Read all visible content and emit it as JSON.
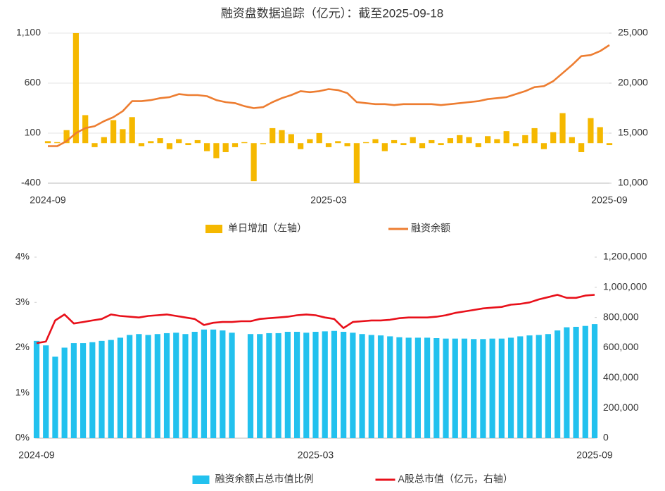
{
  "chart_data": [
    {
      "type": "combo",
      "title": "融资盘数据追踪（亿元）：截至2025-09-18",
      "categories": [
        "2024-09",
        null,
        null,
        null,
        null,
        null,
        null,
        null,
        null,
        null,
        null,
        null,
        null,
        null,
        null,
        null,
        null,
        null,
        null,
        null,
        null,
        null,
        null,
        null,
        null,
        null,
        null,
        null,
        null,
        null,
        "2025-03",
        null,
        null,
        null,
        null,
        null,
        null,
        null,
        null,
        null,
        null,
        null,
        null,
        null,
        null,
        null,
        null,
        null,
        null,
        null,
        null,
        null,
        null,
        null,
        null,
        null,
        null,
        null,
        null,
        null,
        "2025-09"
      ],
      "series": [
        {
          "name": "单日增加（左轴）",
          "type": "bar",
          "axis": "y",
          "color": "#f5b800",
          "values": [
            20,
            10,
            130,
            1100,
            280,
            -40,
            60,
            230,
            140,
            260,
            -30,
            20,
            50,
            -60,
            40,
            -20,
            30,
            -80,
            -150,
            -90,
            -40,
            10,
            -380,
            -10,
            150,
            130,
            90,
            -60,
            40,
            100,
            -40,
            20,
            -30,
            -400,
            10,
            40,
            -80,
            30,
            -20,
            60,
            -50,
            30,
            -20,
            50,
            80,
            60,
            -40,
            70,
            40,
            120,
            -30,
            80,
            150,
            -60,
            110,
            300,
            60,
            -90,
            250,
            160,
            -20
          ]
        },
        {
          "name": "融资余额",
          "type": "line",
          "axis": "y2",
          "color": "#ed7d31",
          "values": [
            13700,
            13700,
            14200,
            15000,
            15500,
            15700,
            16200,
            16600,
            17200,
            18200,
            18200,
            18300,
            18500,
            18600,
            18900,
            18800,
            18800,
            18700,
            18300,
            18100,
            18000,
            17700,
            17500,
            17600,
            18100,
            18500,
            18800,
            19200,
            19100,
            19200,
            19400,
            19300,
            19000,
            18100,
            18000,
            17900,
            17900,
            17800,
            17900,
            17900,
            17900,
            17900,
            17800,
            17900,
            18000,
            18100,
            18200,
            18400,
            18500,
            18600,
            18900,
            19200,
            19600,
            19700,
            20200,
            21000,
            21800,
            22700,
            22800,
            23200,
            23800
          ]
        }
      ],
      "ylim": [
        -400,
        1100
      ],
      "yticks": [
        -400,
        100,
        600,
        {
          "value": 1100,
          "label": "1,100"
        }
      ],
      "y2lim": [
        10000,
        25000
      ],
      "y2ticks": [
        {
          "value": 10000,
          "label": "10,000"
        },
        {
          "value": 15000,
          "label": "15,000"
        },
        {
          "value": 20000,
          "label": "20,000"
        },
        {
          "value": 25000,
          "label": "25,000"
        }
      ],
      "grid": true
    },
    {
      "type": "combo",
      "categories": [
        "2024-09",
        null,
        null,
        null,
        null,
        null,
        null,
        null,
        null,
        null,
        null,
        null,
        null,
        null,
        null,
        null,
        null,
        null,
        null,
        null,
        null,
        null,
        null,
        null,
        null,
        null,
        null,
        null,
        null,
        null,
        "2025-03",
        null,
        null,
        null,
        null,
        null,
        null,
        null,
        null,
        null,
        null,
        null,
        null,
        null,
        null,
        null,
        null,
        null,
        null,
        null,
        null,
        null,
        null,
        null,
        null,
        null,
        null,
        null,
        null,
        null,
        "2025-09"
      ],
      "series": [
        {
          "name": "融资余额占总市值比例",
          "type": "bar",
          "axis": "y",
          "color": "#22c1ee",
          "values": [
            2.15,
            2.05,
            1.8,
            2.0,
            2.1,
            2.1,
            2.12,
            2.15,
            2.17,
            2.22,
            2.28,
            2.3,
            2.28,
            2.3,
            2.32,
            2.33,
            2.3,
            2.35,
            2.4,
            2.4,
            2.38,
            2.33,
            null,
            2.3,
            2.3,
            2.32,
            2.32,
            2.35,
            2.35,
            2.33,
            2.35,
            2.36,
            2.37,
            2.35,
            2.33,
            2.3,
            2.28,
            2.27,
            2.25,
            2.23,
            2.22,
            2.22,
            2.22,
            2.21,
            2.2,
            2.2,
            2.2,
            2.19,
            2.19,
            2.2,
            2.2,
            2.22,
            2.25,
            2.27,
            2.28,
            2.3,
            2.38,
            2.45,
            2.46,
            2.48,
            2.52
          ]
        },
        {
          "name": "A股总市值（亿元，右轴）",
          "type": "line",
          "axis": "y2",
          "color": "#e8101a",
          "values": [
            630000,
            640000,
            780000,
            820000,
            760000,
            770000,
            780000,
            790000,
            820000,
            810000,
            805000,
            800000,
            810000,
            815000,
            820000,
            810000,
            800000,
            790000,
            750000,
            765000,
            770000,
            770000,
            775000,
            775000,
            790000,
            795000,
            800000,
            805000,
            815000,
            820000,
            815000,
            800000,
            790000,
            730000,
            770000,
            775000,
            780000,
            780000,
            785000,
            795000,
            800000,
            800000,
            800000,
            805000,
            815000,
            830000,
            840000,
            850000,
            860000,
            865000,
            870000,
            885000,
            890000,
            900000,
            920000,
            935000,
            950000,
            930000,
            930000,
            945000,
            950000
          ]
        }
      ],
      "ylim": [
        0,
        4
      ],
      "yticks": [
        {
          "value": 0,
          "label": "0%"
        },
        {
          "value": 1,
          "label": "1%"
        },
        {
          "value": 2,
          "label": "2%"
        },
        {
          "value": 3,
          "label": "3%"
        },
        {
          "value": 4,
          "label": "4%"
        }
      ],
      "y2lim": [
        0,
        1200000
      ],
      "y2ticks": [
        0,
        {
          "value": 200000,
          "label": "200,000"
        },
        {
          "value": 400000,
          "label": "400,000"
        },
        {
          "value": 600000,
          "label": "600,000"
        },
        {
          "value": 800000,
          "label": "800,000"
        },
        {
          "value": 1000000,
          "label": "1,000,000"
        },
        {
          "value": 1200000,
          "label": "1,200,000"
        }
      ],
      "grid": false
    }
  ]
}
